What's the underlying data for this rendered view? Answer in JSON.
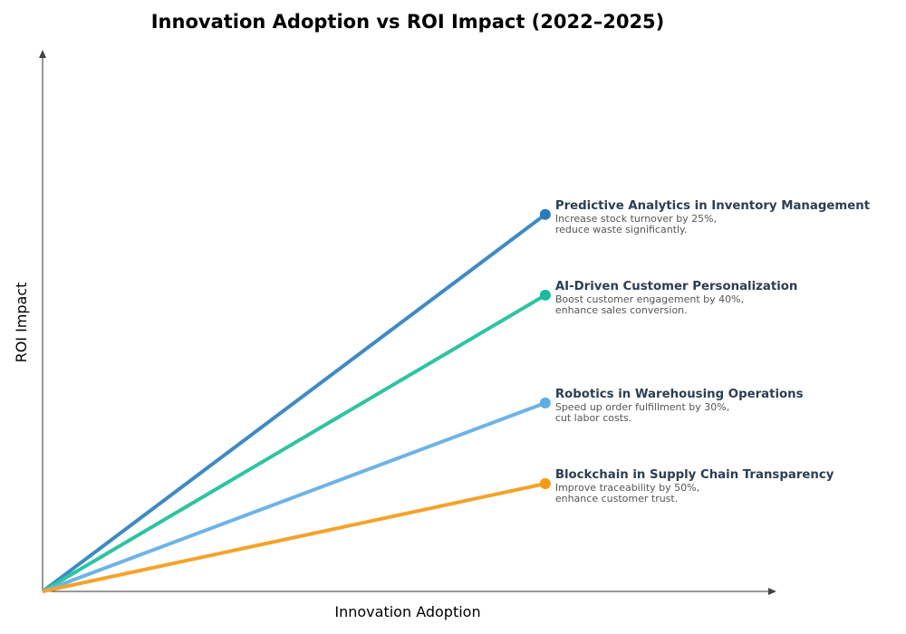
{
  "chart_data": {
    "type": "line",
    "title": "Innovation Adoption vs ROI Impact (2022–2025)",
    "xlabel": "Innovation Adoption",
    "ylabel": "ROI Impact",
    "xlim": [
      0,
      1
    ],
    "ylim": [
      0,
      1
    ],
    "grid": false,
    "ticks": false,
    "series": [
      {
        "name": "Predictive Analytics in Inventory Management",
        "desc1": "Increase stock turnover by 25%,",
        "desc2": "reduce waste significantly.",
        "x": [
          0,
          0.685
        ],
        "y": [
          0,
          0.696
        ],
        "color": "#3d8bc2",
        "marker_color": "#2a7ab9"
      },
      {
        "name": "AI-Driven Customer Personalization",
        "desc1": "Boost customer engagement by 40%,",
        "desc2": "enhance sales conversion.",
        "x": [
          0,
          0.685
        ],
        "y": [
          0,
          0.547
        ],
        "color": "#2ec4a0",
        "marker_color": "#1abc9c"
      },
      {
        "name": "Robotics in Warehousing Operations",
        "desc1": "Speed up order fulfillment by 30%,",
        "desc2": "cut labor costs.",
        "x": [
          0,
          0.685
        ],
        "y": [
          0,
          0.348
        ],
        "color": "#6cb4e4",
        "marker_color": "#5dade2"
      },
      {
        "name": "Blockchain in Supply Chain Transparency",
        "desc1": "Improve traceability by 50%,",
        "desc2": "enhance customer trust.",
        "x": [
          0,
          0.685
        ],
        "y": [
          0,
          0.199
        ],
        "color": "#f5a22a",
        "marker_color": "#f39c12"
      }
    ]
  }
}
